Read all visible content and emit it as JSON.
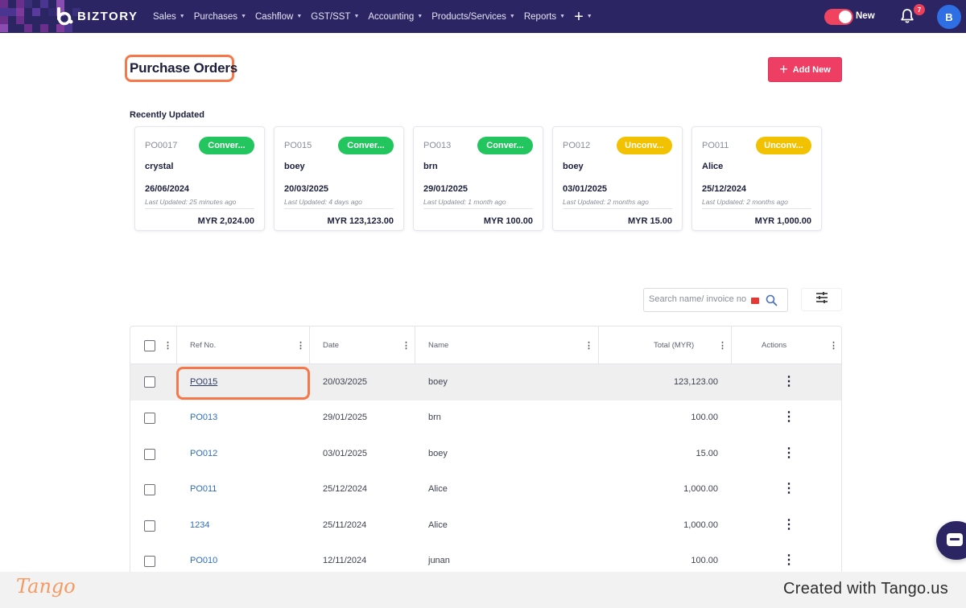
{
  "app": {
    "name": "BIZTORY",
    "colors": {
      "nav_bg": "#2b2563",
      "accent": "#ef3e63",
      "converted": "#22c55e",
      "unconverted": "#f2c200",
      "link": "#2f6db5",
      "highlight_frame": "#f6774a"
    }
  },
  "nav": {
    "items": [
      {
        "label": "Sales"
      },
      {
        "label": "Purchases"
      },
      {
        "label": "Cashflow"
      },
      {
        "label": "GST/SST"
      },
      {
        "label": "Accounting"
      },
      {
        "label": "Products/Services"
      },
      {
        "label": "Reports"
      }
    ],
    "plus_icon": "+",
    "toggle_label": "New",
    "notification_count": "7",
    "avatar_initial": "B"
  },
  "page": {
    "title": "Purchase Orders",
    "add_button_label": "Add New",
    "add_button_icon": "+",
    "recent_title": "Recently Updated"
  },
  "cards": [
    {
      "ref": "PO0017",
      "status": "Conver...",
      "status_type": "converted",
      "name": "crystal",
      "date": "26/06/2024",
      "updated": "Last Updated: 25 minutes ago",
      "amount": "MYR 2,024.00"
    },
    {
      "ref": "PO015",
      "status": "Conver...",
      "status_type": "converted",
      "name": "boey",
      "date": "20/03/2025",
      "updated": "Last Updated: 4 days ago",
      "amount": "MYR 123,123.00"
    },
    {
      "ref": "PO013",
      "status": "Conver...",
      "status_type": "converted",
      "name": "brn",
      "date": "29/01/2025",
      "updated": "Last Updated: 1 month ago",
      "amount": "MYR 100.00"
    },
    {
      "ref": "PO012",
      "status": "Unconv...",
      "status_type": "unconverted",
      "name": "boey",
      "date": "03/01/2025",
      "updated": "Last Updated: 2 months ago",
      "amount": "MYR 15.00"
    },
    {
      "ref": "PO011",
      "status": "Unconv...",
      "status_type": "unconverted",
      "name": "Alice",
      "date": "25/12/2024",
      "updated": "Last Updated: 2 months ago",
      "amount": "MYR 1,000.00"
    }
  ],
  "search": {
    "placeholder": "Search name/ invoice no"
  },
  "table": {
    "headers": {
      "ref": "Ref No.",
      "date": "Date",
      "name": "Name",
      "total": "Total (MYR)",
      "actions": "Actions"
    },
    "rows": [
      {
        "ref": "PO015",
        "date": "20/03/2025",
        "name": "boey",
        "total": "123,123.00",
        "highlighted": true
      },
      {
        "ref": "PO013",
        "date": "29/01/2025",
        "name": "brn",
        "total": "100.00",
        "highlighted": false
      },
      {
        "ref": "PO012",
        "date": "03/01/2025",
        "name": "boey",
        "total": "15.00",
        "highlighted": false
      },
      {
        "ref": "PO011",
        "date": "25/12/2024",
        "name": "Alice",
        "total": "1,000.00",
        "highlighted": false
      },
      {
        "ref": "1234",
        "date": "25/11/2024",
        "name": "Alice",
        "total": "1,000.00",
        "highlighted": false
      },
      {
        "ref": "PO010",
        "date": "12/11/2024",
        "name": "junan",
        "total": "100.00",
        "highlighted": false
      }
    ]
  },
  "footer": {
    "brand": "Tango",
    "created_text": "Created with Tango.us"
  }
}
